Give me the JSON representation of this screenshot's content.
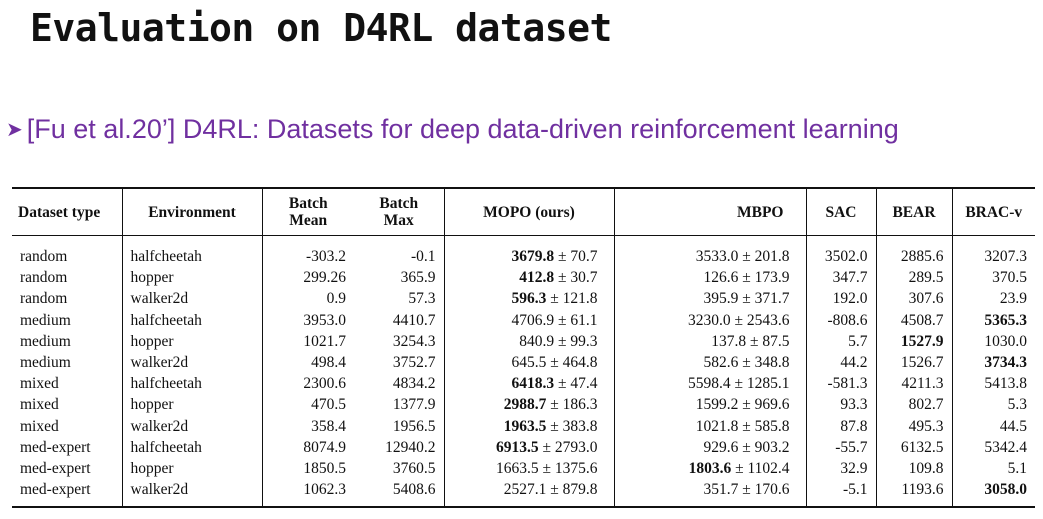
{
  "slide": {
    "title": "Evaluation on D4RL dataset",
    "bullet": "[Fu et al.20’] D4RL: Datasets for deep data-driven reinforcement learning"
  },
  "table": {
    "headers": {
      "dataset_type": "Dataset type",
      "environment": "Environment",
      "batch_mean_1": "Batch",
      "batch_mean_2": "Mean",
      "batch_max_1": "Batch",
      "batch_max_2": "Max",
      "mopo": "MOPO (ours)",
      "mbpo": "MBPO",
      "sac": "SAC",
      "bear": "BEAR",
      "brac": "BRAC-v"
    },
    "rows": [
      {
        "dtype": "random",
        "env": "halfcheetah",
        "bmean": "-303.2",
        "bmax": "-0.1",
        "mopo": "3679.8",
        "mopo_err": "± 70.7",
        "mopo_bold": true,
        "mbpo": "3533.0",
        "mbpo_err": "± 201.8",
        "mbpo_bold": false,
        "sac": "3502.0",
        "sac_bold": false,
        "bear": "2885.6",
        "bear_bold": false,
        "brac": "3207.3",
        "brac_bold": false
      },
      {
        "dtype": "random",
        "env": "hopper",
        "bmean": "299.26",
        "bmax": "365.9",
        "mopo": "412.8",
        "mopo_err": "± 30.7",
        "mopo_bold": true,
        "mbpo": "126.6",
        "mbpo_err": "± 173.9",
        "mbpo_bold": false,
        "sac": "347.7",
        "sac_bold": false,
        "bear": "289.5",
        "bear_bold": false,
        "brac": "370.5",
        "brac_bold": false
      },
      {
        "dtype": "random",
        "env": "walker2d",
        "bmean": "0.9",
        "bmax": "57.3",
        "mopo": "596.3",
        "mopo_err": "± 121.8",
        "mopo_bold": true,
        "mbpo": "395.9",
        "mbpo_err": "± 371.7",
        "mbpo_bold": false,
        "sac": "192.0",
        "sac_bold": false,
        "bear": "307.6",
        "bear_bold": false,
        "brac": "23.9",
        "brac_bold": false
      },
      {
        "dtype": "medium",
        "env": "halfcheetah",
        "bmean": "3953.0",
        "bmax": "4410.7",
        "mopo": "4706.9",
        "mopo_err": "± 61.1",
        "mopo_bold": false,
        "mbpo": "3230.0",
        "mbpo_err": "± 2543.6",
        "mbpo_bold": false,
        "sac": "-808.6",
        "sac_bold": false,
        "bear": "4508.7",
        "bear_bold": false,
        "brac": "5365.3",
        "brac_bold": true
      },
      {
        "dtype": "medium",
        "env": "hopper",
        "bmean": "1021.7",
        "bmax": "3254.3",
        "mopo": "840.9",
        "mopo_err": "± 99.3",
        "mopo_bold": false,
        "mbpo": "137.8",
        "mbpo_err": "± 87.5",
        "mbpo_bold": false,
        "sac": "5.7",
        "sac_bold": false,
        "bear": "1527.9",
        "bear_bold": true,
        "brac": "1030.0",
        "brac_bold": false
      },
      {
        "dtype": "medium",
        "env": "walker2d",
        "bmean": "498.4",
        "bmax": "3752.7",
        "mopo": "645.5",
        "mopo_err": "± 464.8",
        "mopo_bold": false,
        "mbpo": "582.6",
        "mbpo_err": "± 348.8",
        "mbpo_bold": false,
        "sac": "44.2",
        "sac_bold": false,
        "bear": "1526.7",
        "bear_bold": false,
        "brac": "3734.3",
        "brac_bold": true
      },
      {
        "dtype": "mixed",
        "env": "halfcheetah",
        "bmean": "2300.6",
        "bmax": "4834.2",
        "mopo": "6418.3",
        "mopo_err": "± 47.4",
        "mopo_bold": true,
        "mbpo": "5598.4",
        "mbpo_err": "± 1285.1",
        "mbpo_bold": false,
        "sac": "-581.3",
        "sac_bold": false,
        "bear": "4211.3",
        "bear_bold": false,
        "brac": "5413.8",
        "brac_bold": false
      },
      {
        "dtype": "mixed",
        "env": "hopper",
        "bmean": "470.5",
        "bmax": "1377.9",
        "mopo": "2988.7",
        "mopo_err": "± 186.3",
        "mopo_bold": true,
        "mbpo": "1599.2",
        "mbpo_err": "± 969.6",
        "mbpo_bold": false,
        "sac": "93.3",
        "sac_bold": false,
        "bear": "802.7",
        "bear_bold": false,
        "brac": "5.3",
        "brac_bold": false
      },
      {
        "dtype": "mixed",
        "env": "walker2d",
        "bmean": "358.4",
        "bmax": "1956.5",
        "mopo": "1963.5",
        "mopo_err": "± 383.8",
        "mopo_bold": true,
        "mbpo": "1021.8",
        "mbpo_err": "± 585.8",
        "mbpo_bold": false,
        "sac": "87.8",
        "sac_bold": false,
        "bear": "495.3",
        "bear_bold": false,
        "brac": "44.5",
        "brac_bold": false
      },
      {
        "dtype": "med-expert",
        "env": "halfcheetah",
        "bmean": "8074.9",
        "bmax": "12940.2",
        "mopo": "6913.5",
        "mopo_err": "± 2793.0",
        "mopo_bold": true,
        "mbpo": "929.6",
        "mbpo_err": "± 903.2",
        "mbpo_bold": false,
        "sac": "-55.7",
        "sac_bold": false,
        "bear": "6132.5",
        "bear_bold": false,
        "brac": "5342.4",
        "brac_bold": false
      },
      {
        "dtype": "med-expert",
        "env": "hopper",
        "bmean": "1850.5",
        "bmax": "3760.5",
        "mopo": "1663.5",
        "mopo_err": "± 1375.6",
        "mopo_bold": false,
        "mbpo": "1803.6",
        "mbpo_err": "± 1102.4",
        "mbpo_bold": true,
        "sac": "32.9",
        "sac_bold": false,
        "bear": "109.8",
        "bear_bold": false,
        "brac": "5.1",
        "brac_bold": false
      },
      {
        "dtype": "med-expert",
        "env": "walker2d",
        "bmean": "1062.3",
        "bmax": "5408.6",
        "mopo": "2527.1",
        "mopo_err": "± 879.8",
        "mopo_bold": false,
        "mbpo": "351.7",
        "mbpo_err": "± 170.6",
        "mbpo_bold": false,
        "sac": "-5.1",
        "sac_bold": false,
        "bear": "1193.6",
        "bear_bold": false,
        "brac": "3058.0",
        "brac_bold": true
      }
    ]
  }
}
